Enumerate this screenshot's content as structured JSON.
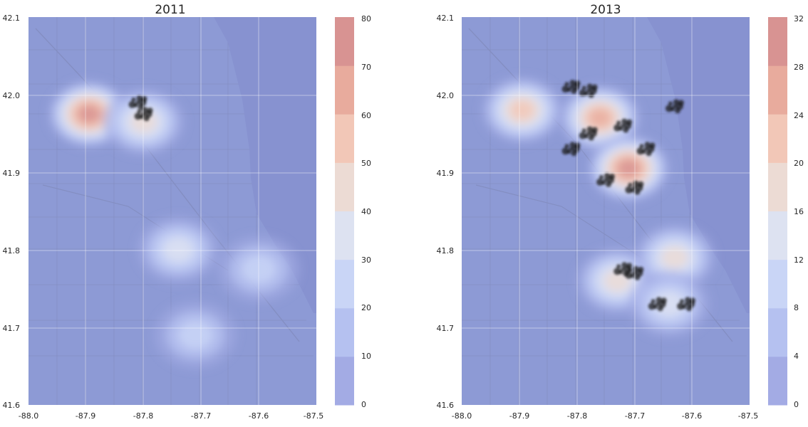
{
  "panels": [
    {
      "title": "2011",
      "x_ticks": [
        "-88.0",
        "-87.9",
        "-87.8",
        "-87.7",
        "-87.6",
        "-87.5"
      ],
      "y_ticks": [
        "41.6",
        "41.7",
        "41.8",
        "41.9",
        "42.0",
        "42.1"
      ],
      "colorbar_ticks": [
        "0",
        "10",
        "20",
        "30",
        "40",
        "50",
        "60",
        "70",
        "80"
      ],
      "colorbar_range": [
        0,
        80
      ],
      "density_hotspots": [
        {
          "lon": -87.895,
          "lat": 41.975,
          "level": 72
        },
        {
          "lon": -87.8,
          "lat": 41.965,
          "level": 46
        },
        {
          "lon": -87.74,
          "lat": 41.8,
          "level": 35
        },
        {
          "lon": -87.6,
          "lat": 41.775,
          "level": 30
        },
        {
          "lon": -87.71,
          "lat": 41.69,
          "level": 22
        }
      ],
      "incident_clusters": [
        {
          "lon": -87.81,
          "lat": 41.99
        },
        {
          "lon": -87.8,
          "lat": 41.975
        }
      ]
    },
    {
      "title": "2013",
      "x_ticks": [
        "-88.0",
        "-87.9",
        "-87.8",
        "-87.7",
        "-87.6",
        "-87.5"
      ],
      "y_ticks": [
        "41.6",
        "41.7",
        "41.8",
        "41.9",
        "42.0",
        "42.1"
      ],
      "colorbar_ticks": [
        "0",
        "4",
        "8",
        "12",
        "16",
        "20",
        "24",
        "28",
        "32"
      ],
      "colorbar_range": [
        0,
        32
      ],
      "density_hotspots": [
        {
          "lon": -87.895,
          "lat": 41.98,
          "level": 22
        },
        {
          "lon": -87.76,
          "lat": 41.97,
          "level": 25
        },
        {
          "lon": -87.71,
          "lat": 41.905,
          "level": 30
        },
        {
          "lon": -87.73,
          "lat": 41.76,
          "level": 20
        },
        {
          "lon": -87.63,
          "lat": 41.79,
          "level": 19
        },
        {
          "lon": -87.64,
          "lat": 41.73,
          "level": 16
        }
      ],
      "incident_clusters": [
        {
          "lon": -87.81,
          "lat": 42.01
        },
        {
          "lon": -87.78,
          "lat": 42.005
        },
        {
          "lon": -87.78,
          "lat": 41.95
        },
        {
          "lon": -87.81,
          "lat": 41.93
        },
        {
          "lon": -87.72,
          "lat": 41.96
        },
        {
          "lon": -87.68,
          "lat": 41.93
        },
        {
          "lon": -87.63,
          "lat": 41.985
        },
        {
          "lon": -87.75,
          "lat": 41.89
        },
        {
          "lon": -87.7,
          "lat": 41.88
        },
        {
          "lon": -87.72,
          "lat": 41.775
        },
        {
          "lon": -87.7,
          "lat": 41.77
        },
        {
          "lon": -87.66,
          "lat": 41.73
        },
        {
          "lon": -87.61,
          "lat": 41.73
        }
      ]
    }
  ],
  "colors": {
    "background": "#8d9ad5",
    "water": "#8792d0",
    "levels": [
      "#a3abe4",
      "#b5c1f0",
      "#c9d5f6",
      "#dde2f1",
      "#ecdbd4",
      "#f2c7b7",
      "#e8ab9d",
      "#d89392"
    ]
  }
}
